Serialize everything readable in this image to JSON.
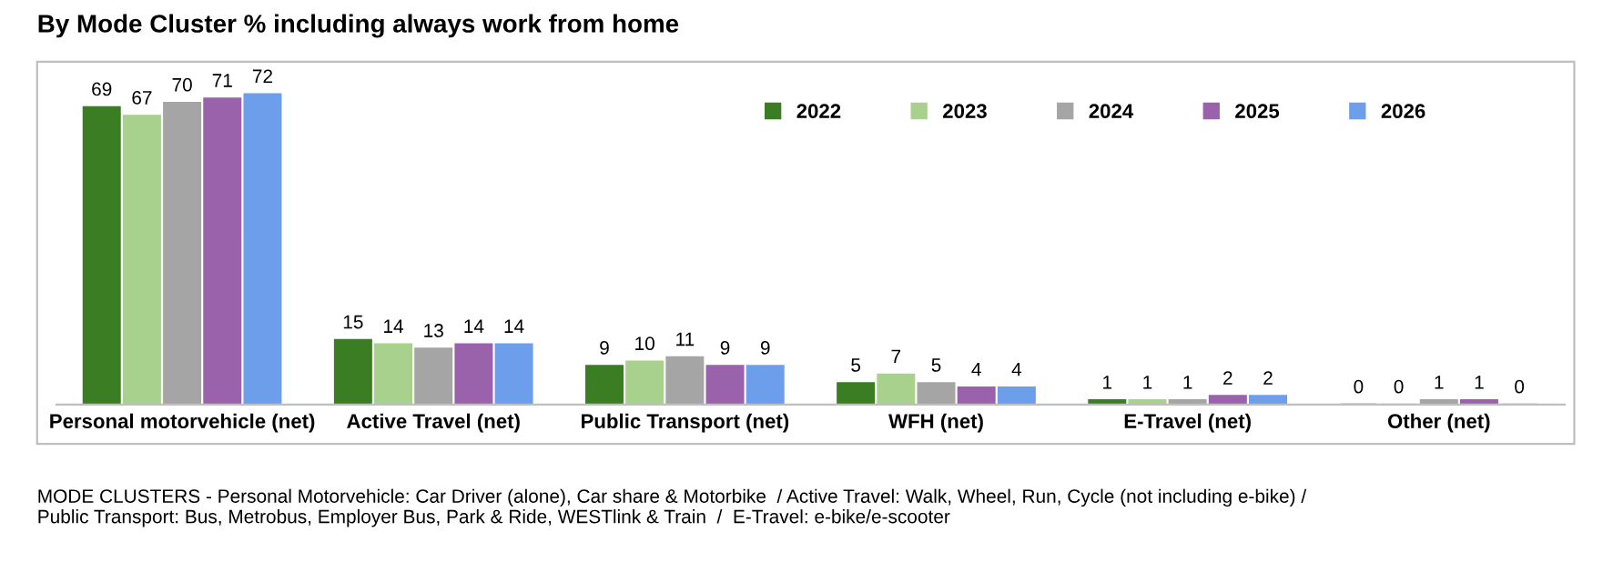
{
  "chart_data": {
    "type": "bar",
    "title": "By Mode Cluster % including always work from home",
    "categories": [
      "Personal motorvehicle (net)",
      "Active Travel (net)",
      "Public Transport (net)",
      "WFH (net)",
      "E-Travel (net)",
      "Other (net)"
    ],
    "series": [
      {
        "name": "2022",
        "color": "#3b7d23",
        "values": [
          69,
          15,
          9,
          5,
          1,
          0
        ]
      },
      {
        "name": "2023",
        "color": "#a9d18e",
        "values": [
          67,
          14,
          10,
          7,
          1,
          0
        ]
      },
      {
        "name": "2024",
        "color": "#a5a5a5",
        "values": [
          70,
          13,
          11,
          5,
          1,
          1
        ]
      },
      {
        "name": "2025",
        "color": "#9a62ab",
        "values": [
          71,
          14,
          9,
          4,
          2,
          1
        ]
      },
      {
        "name": "2026",
        "color": "#6d9eeb",
        "values": [
          72,
          14,
          9,
          4,
          2,
          0
        ]
      }
    ],
    "tick_labels": "x",
    "data_labels": true,
    "legend": "top right",
    "grid": false,
    "annotations": [
      "MODE CLUSTERS - Personal Motorvehicle: Car Driver (alone), Car share & Motorbike  / Active Travel: Walk, Wheel, Run, Cycle (not including e-bike) /\nPublic Transport: Bus, Metrobus, Employer Bus, Park & Ride, WESTlink & Train  /  E-Travel: e-bike/e-scooter"
    ]
  }
}
